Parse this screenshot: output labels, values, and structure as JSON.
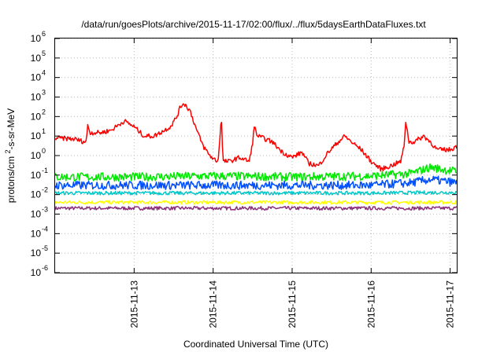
{
  "chart_data": {
    "type": "line",
    "title": "/data/run/goesPlots/archive/2015-11-17/02:00/flux/../flux/5daysEarthDataFluxes.txt",
    "xlabel": "Coordinated Universal Time (UTC)",
    "ylabel": "protons/cm²-s-sr-MeV",
    "yscale": "log",
    "ylim": [
      1e-06,
      1000000.0
    ],
    "y_ticks": [
      {
        "value": -6,
        "label": "10",
        "exp": "-6"
      },
      {
        "value": -5,
        "label": "10",
        "exp": "-5"
      },
      {
        "value": -4,
        "label": "10",
        "exp": "-4"
      },
      {
        "value": -3,
        "label": "10",
        "exp": "-3"
      },
      {
        "value": -2,
        "label": "10",
        "exp": "-2"
      },
      {
        "value": -1,
        "label": "10",
        "exp": "-1"
      },
      {
        "value": 0,
        "label": "10",
        "exp": "0"
      },
      {
        "value": 1,
        "label": "10",
        "exp": "1"
      },
      {
        "value": 2,
        "label": "10",
        "exp": "2"
      },
      {
        "value": 3,
        "label": "10",
        "exp": "3"
      },
      {
        "value": 4,
        "label": "10",
        "exp": "4"
      },
      {
        "value": 5,
        "label": "10",
        "exp": "5"
      },
      {
        "value": 6,
        "label": "10",
        "exp": "6"
      }
    ],
    "xlim": [
      "2015-11-12",
      "2015-11-17 02:00"
    ],
    "x_ticks": [
      {
        "value": "2015-11-13",
        "label": "2015-11-13"
      },
      {
        "value": "2015-11-14",
        "label": "2015-11-14"
      },
      {
        "value": "2015-11-15",
        "label": "2015-11-15"
      },
      {
        "value": "2015-11-16",
        "label": "2015-11-16"
      },
      {
        "value": "2015-11-17",
        "label": "2015-11-17"
      }
    ],
    "grid": true,
    "series": [
      {
        "color": "#ff0000",
        "x": [
          "2015-11-12 00:00",
          "2015-11-12 06:00",
          "2015-11-12 09:00",
          "2015-11-12 09:36",
          "2015-11-12 09:50",
          "2015-11-12 10:30",
          "2015-11-12 14:00",
          "2015-11-12 17:00",
          "2015-11-12 18:30",
          "2015-11-12 21:00",
          "2015-11-13 00:00",
          "2015-11-13 03:00",
          "2015-11-13 06:00",
          "2015-11-13 08:00",
          "2015-11-13 11:00",
          "2015-11-13 13:00",
          "2015-11-13 14:00",
          "2015-11-13 15:00",
          "2015-11-13 17:00",
          "2015-11-13 19:00",
          "2015-11-13 21:00",
          "2015-11-13 23:00",
          "2015-11-14 00:00",
          "2015-11-14 01:30",
          "2015-11-14 02:30",
          "2015-11-14 03:00",
          "2015-11-14 05:00",
          "2015-11-14 08:00",
          "2015-11-14 11:00",
          "2015-11-14 12:00",
          "2015-11-14 12:30",
          "2015-11-14 13:30",
          "2015-11-14 15:00",
          "2015-11-14 18:00",
          "2015-11-14 21:00",
          "2015-11-15 00:00",
          "2015-11-15 03:00",
          "2015-11-15 05:00",
          "2015-11-15 08:00",
          "2015-11-15 11:00",
          "2015-11-15 14:00",
          "2015-11-15 16:00",
          "2015-11-15 18:00",
          "2015-11-15 21:00",
          "2015-11-16 00:00",
          "2015-11-16 03:00",
          "2015-11-16 06:00",
          "2015-11-16 09:00",
          "2015-11-16 10:00",
          "2015-11-16 10:30",
          "2015-11-16 11:30",
          "2015-11-16 13:00",
          "2015-11-16 16:00",
          "2015-11-16 18:00",
          "2015-11-16 20:00",
          "2015-11-16 22:00",
          "2015-11-17 00:00",
          "2015-11-17 02:00"
        ],
        "values": [
          8,
          7,
          5,
          6,
          50,
          15,
          15,
          20,
          30,
          60,
          30,
          10,
          10,
          15,
          30,
          100,
          300,
          500,
          200,
          20,
          3,
          1,
          0.7,
          0.5,
          100,
          0.5,
          0.5,
          0.8,
          0.5,
          5,
          30,
          10,
          8,
          5,
          1.5,
          0.8,
          1.5,
          0.4,
          0.3,
          1.5,
          5,
          10,
          5,
          2,
          0.5,
          0.2,
          0.3,
          0.5,
          3,
          60,
          5,
          5,
          10,
          5,
          2,
          2,
          2,
          3
        ]
      },
      {
        "color": "#00e800",
        "x": [
          "2015-11-12 00:00",
          "2015-11-13 00:00",
          "2015-11-14 00:00",
          "2015-11-15 00:00",
          "2015-11-16 00:00",
          "2015-11-16 12:00",
          "2015-11-16 18:00",
          "2015-11-17 02:00"
        ],
        "values": [
          0.08,
          0.08,
          0.09,
          0.08,
          0.09,
          0.12,
          0.25,
          0.15
        ]
      },
      {
        "color": "#0050ff",
        "x": [
          "2015-11-12 00:00",
          "2015-11-13 00:00",
          "2015-11-14 00:00",
          "2015-11-15 00:00",
          "2015-11-16 00:00",
          "2015-11-16 12:00",
          "2015-11-16 18:00",
          "2015-11-17 02:00"
        ],
        "values": [
          0.03,
          0.03,
          0.03,
          0.03,
          0.03,
          0.04,
          0.06,
          0.04
        ]
      },
      {
        "color": "#00c8c8",
        "x": [
          "2015-11-12 00:00",
          "2015-11-13 00:00",
          "2015-11-14 00:00",
          "2015-11-15 00:00",
          "2015-11-16 00:00",
          "2015-11-17 02:00"
        ],
        "values": [
          0.012,
          0.012,
          0.012,
          0.012,
          0.012,
          0.013
        ]
      },
      {
        "color": "#ffff00",
        "x": [
          "2015-11-12 00:00",
          "2015-11-13 00:00",
          "2015-11-14 00:00",
          "2015-11-15 00:00",
          "2015-11-16 00:00",
          "2015-11-17 02:00"
        ],
        "values": [
          0.004,
          0.004,
          0.004,
          0.004,
          0.004,
          0.004
        ]
      },
      {
        "color": "#8b2f7a",
        "x": [
          "2015-11-12 00:00",
          "2015-11-13 00:00",
          "2015-11-14 00:00",
          "2015-11-15 00:00",
          "2015-11-16 00:00",
          "2015-11-17 02:00"
        ],
        "values": [
          0.002,
          0.002,
          0.002,
          0.002,
          0.002,
          0.002
        ]
      }
    ]
  }
}
